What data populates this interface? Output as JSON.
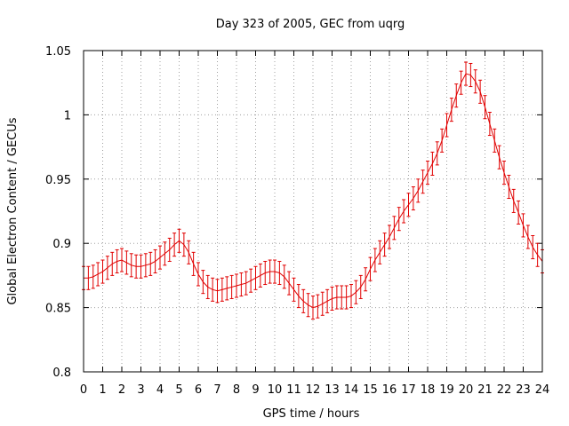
{
  "chart_data": {
    "type": "line",
    "title": "Day 323 of 2005, GEC from uqrg",
    "xlabel": "GPS time / hours",
    "ylabel": "Global Electron Content / GECUs",
    "xlim": [
      0,
      24
    ],
    "ylim": [
      0.8,
      1.05
    ],
    "x_ticks": [
      "0",
      "1",
      "2",
      "3",
      "4",
      "5",
      "6",
      "7",
      "8",
      "9",
      "10",
      "11",
      "12",
      "13",
      "14",
      "15",
      "16",
      "17",
      "18",
      "19",
      "20",
      "21",
      "22",
      "23",
      "24"
    ],
    "y_ticks": [
      "0.8",
      "0.85",
      "0.9",
      "0.95",
      "1",
      "1.05"
    ],
    "grid": true,
    "colors": {
      "series": "#e00000"
    },
    "error": 0.009,
    "x": [
      0,
      0.25,
      0.5,
      0.75,
      1,
      1.25,
      1.5,
      1.75,
      2,
      2.25,
      2.5,
      2.75,
      3,
      3.25,
      3.5,
      3.75,
      4,
      4.25,
      4.5,
      4.75,
      5,
      5.25,
      5.5,
      5.75,
      6,
      6.25,
      6.5,
      6.75,
      7,
      7.25,
      7.5,
      7.75,
      8,
      8.25,
      8.5,
      8.75,
      9,
      9.25,
      9.5,
      9.75,
      10,
      10.25,
      10.5,
      10.75,
      11,
      11.25,
      11.5,
      11.75,
      12,
      12.25,
      12.5,
      12.75,
      13,
      13.25,
      13.5,
      13.75,
      14,
      14.25,
      14.5,
      14.75,
      15,
      15.25,
      15.5,
      15.75,
      16,
      16.25,
      16.5,
      16.75,
      17,
      17.25,
      17.5,
      17.75,
      18,
      18.25,
      18.5,
      18.75,
      19,
      19.25,
      19.5,
      19.75,
      20,
      20.25,
      20.5,
      20.75,
      21,
      21.25,
      21.5,
      21.75,
      22,
      22.25,
      22.5,
      22.75,
      23,
      23.25,
      23.5,
      23.75,
      24
    ],
    "y": [
      0.873,
      0.873,
      0.874,
      0.876,
      0.878,
      0.881,
      0.884,
      0.886,
      0.887,
      0.885,
      0.883,
      0.882,
      0.882,
      0.883,
      0.884,
      0.886,
      0.889,
      0.892,
      0.895,
      0.899,
      0.902,
      0.899,
      0.893,
      0.884,
      0.876,
      0.87,
      0.866,
      0.864,
      0.863,
      0.864,
      0.865,
      0.866,
      0.867,
      0.868,
      0.869,
      0.871,
      0.873,
      0.875,
      0.877,
      0.878,
      0.878,
      0.877,
      0.874,
      0.869,
      0.864,
      0.859,
      0.855,
      0.852,
      0.85,
      0.851,
      0.853,
      0.855,
      0.857,
      0.858,
      0.858,
      0.858,
      0.859,
      0.862,
      0.866,
      0.872,
      0.88,
      0.887,
      0.893,
      0.899,
      0.905,
      0.912,
      0.919,
      0.925,
      0.93,
      0.935,
      0.941,
      0.948,
      0.955,
      0.962,
      0.97,
      0.98,
      0.992,
      1.004,
      1.015,
      1.025,
      1.032,
      1.031,
      1.026,
      1.018,
      1.006,
      0.993,
      0.98,
      0.967,
      0.955,
      0.944,
      0.933,
      0.924,
      0.914,
      0.905,
      0.897,
      0.891,
      0.886
    ]
  }
}
